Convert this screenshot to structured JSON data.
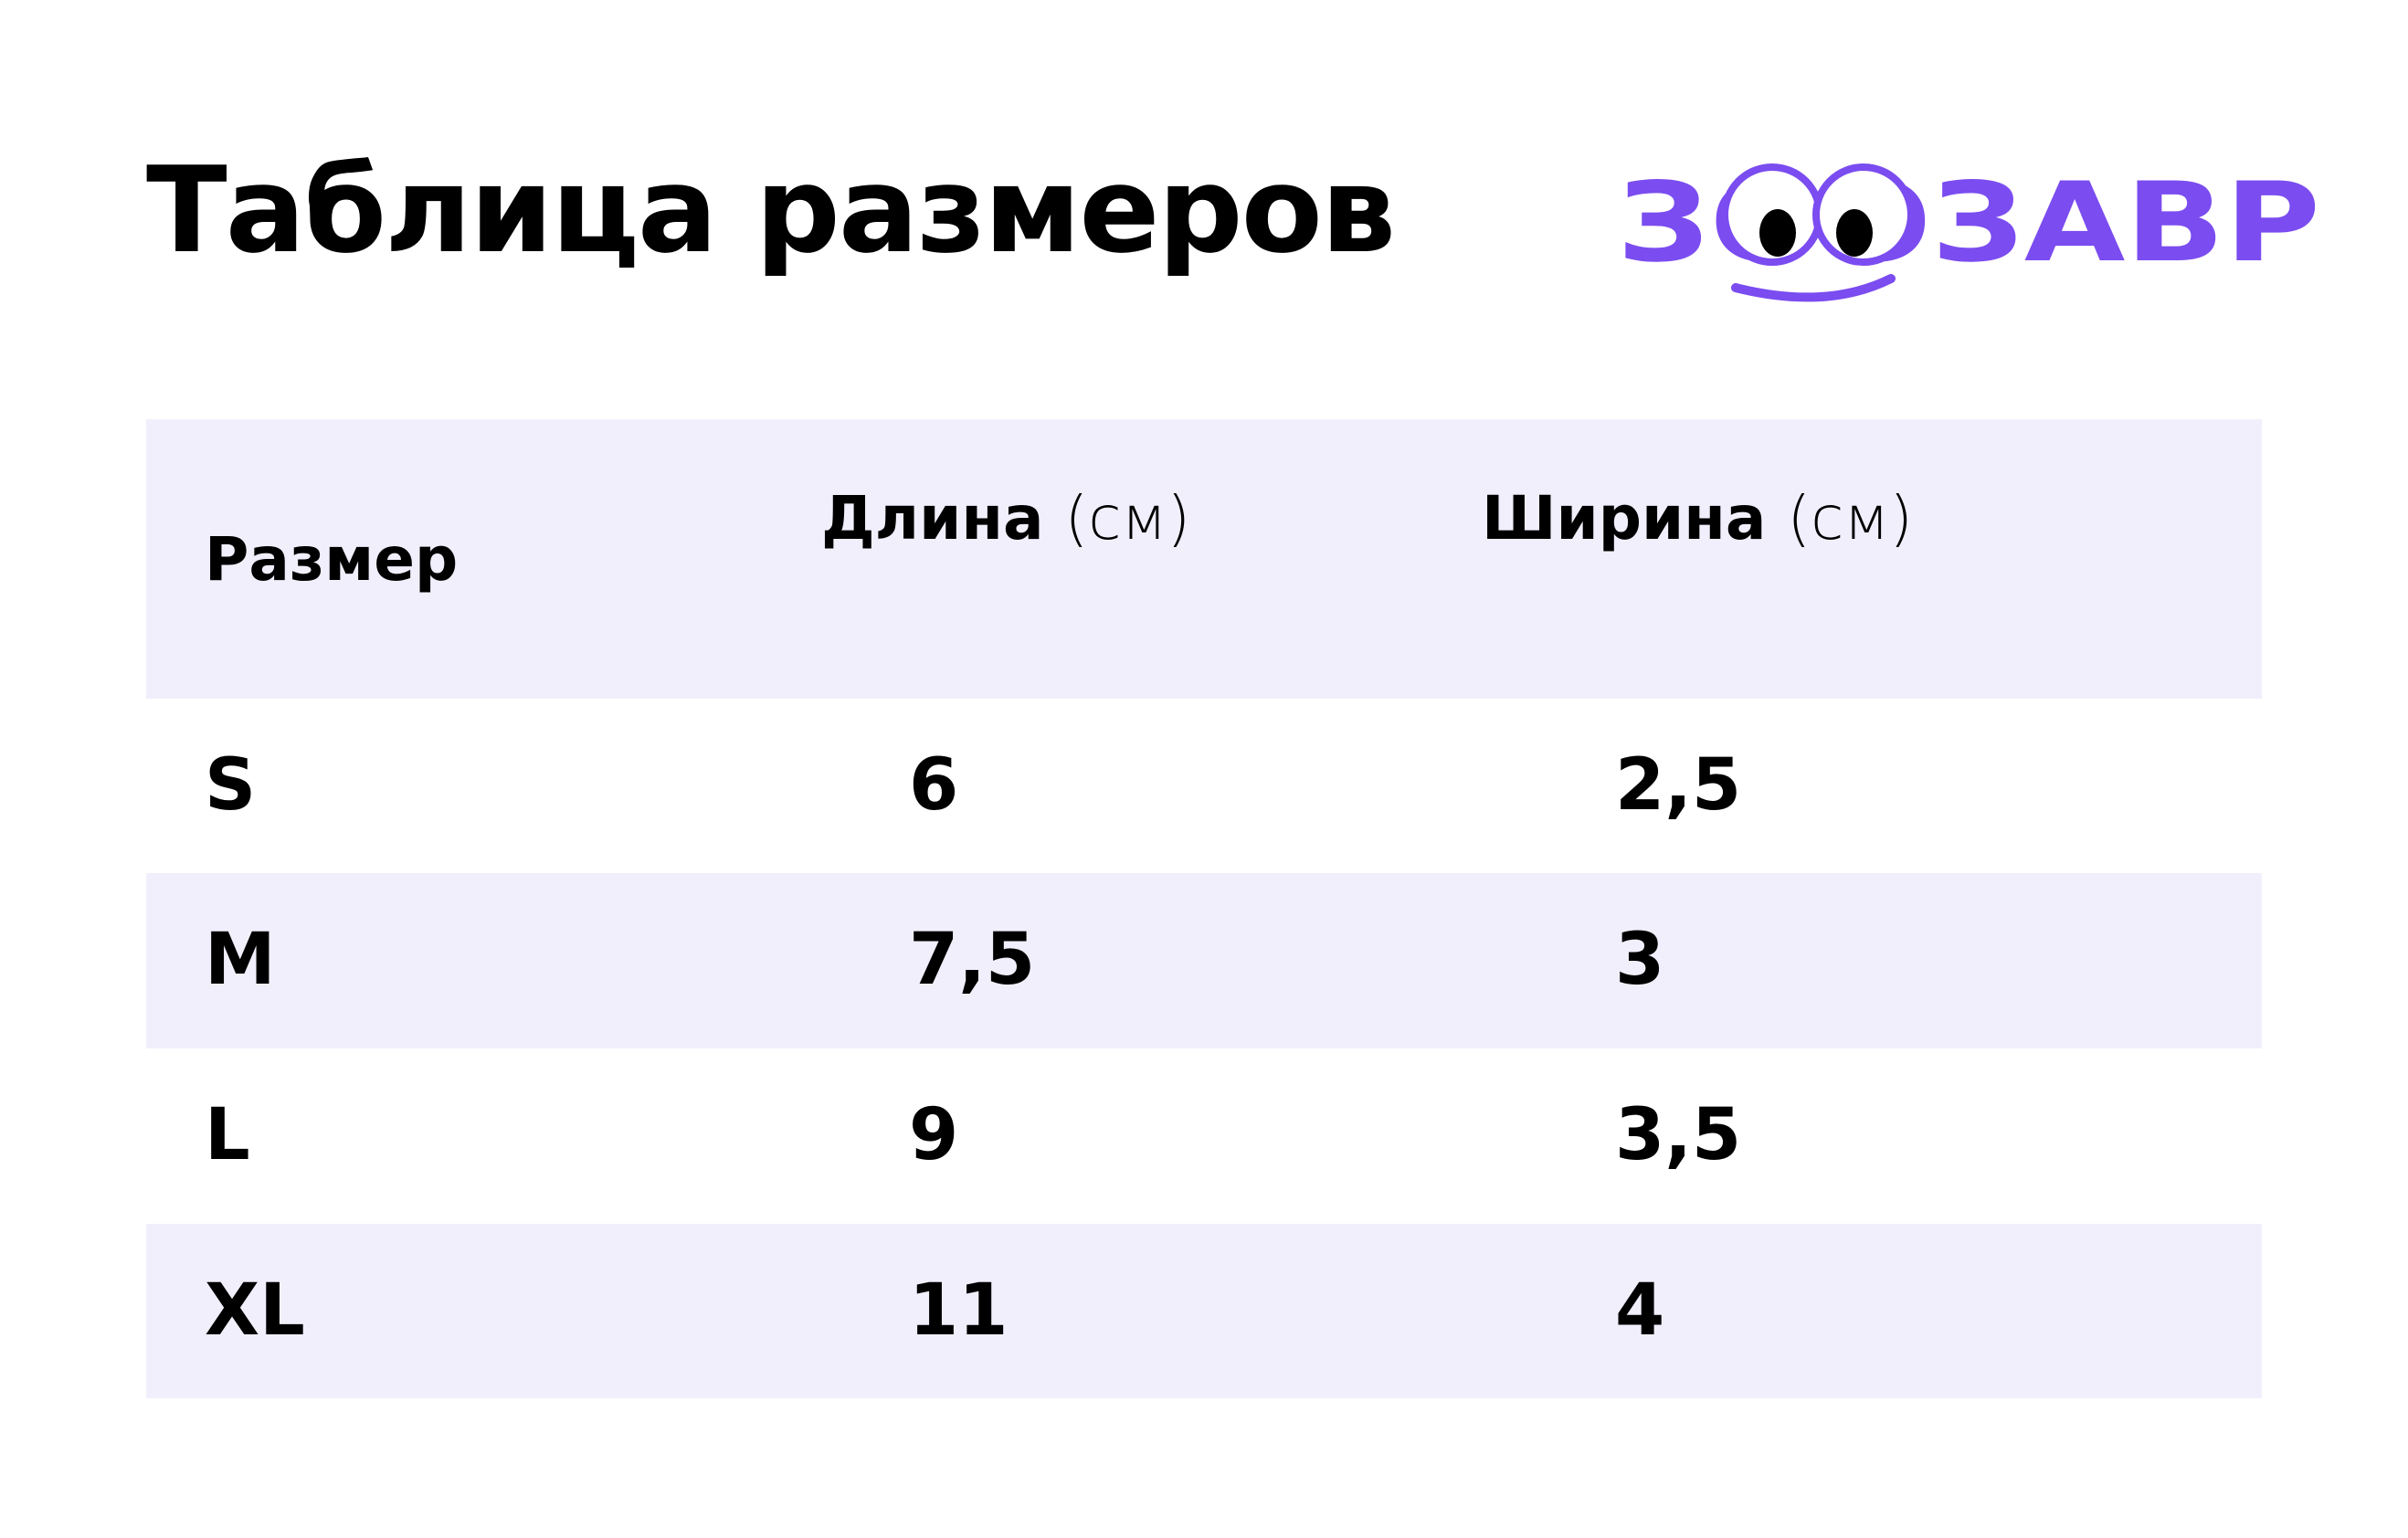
{
  "header": {
    "title": "Таблица размеров",
    "logo": "ЗООЗАВР"
  },
  "table": {
    "columns": [
      {
        "label": "Размер"
      },
      {
        "label": "Длина",
        "unit": "(см)"
      },
      {
        "label": "Ширина",
        "unit": "(см)"
      }
    ],
    "rows": [
      [
        "S",
        "6",
        "2,5"
      ],
      [
        "M",
        "7,5",
        "3"
      ],
      [
        "L",
        "9",
        "3,5"
      ],
      [
        "XL",
        "11",
        "4"
      ]
    ]
  }
}
